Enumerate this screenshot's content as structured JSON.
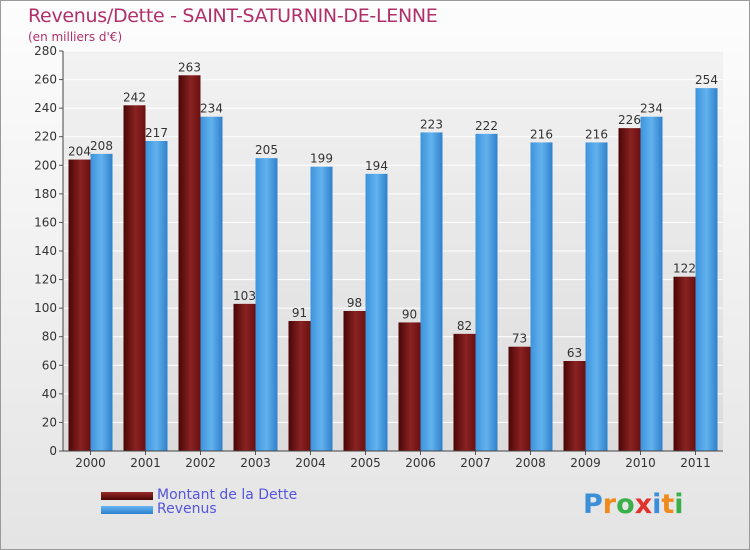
{
  "chart_data": {
    "type": "bar",
    "title": "Revenus/Dette - SAINT-SATURNIN-DE-LENNE",
    "subtitle": "(en milliers d'€)",
    "categories": [
      "2000",
      "2001",
      "2002",
      "2003",
      "2004",
      "2005",
      "2006",
      "2007",
      "2008",
      "2009",
      "2010",
      "2011"
    ],
    "series": [
      {
        "name": "Montant de la Dette",
        "color": "#7a1616",
        "values": [
          204,
          242,
          263,
          103,
          91,
          98,
          90,
          82,
          73,
          63,
          226,
          122
        ]
      },
      {
        "name": "Revenus",
        "color": "#4da3e6",
        "values": [
          208,
          217,
          234,
          205,
          199,
          194,
          223,
          222,
          216,
          216,
          234,
          254
        ]
      }
    ],
    "ylim": [
      0,
      280
    ],
    "yticks": [
      0,
      20,
      40,
      60,
      80,
      100,
      120,
      140,
      160,
      180,
      200,
      220,
      240,
      260,
      280
    ],
    "grid": true,
    "legend": "bottom-left"
  },
  "brand": {
    "letters": [
      "P",
      "r",
      "o",
      "x",
      "i",
      "t",
      "i"
    ],
    "colors": [
      "#3b8ed8",
      "#f08a1c",
      "#3bb04a",
      "#e2322e",
      "#3b8ed8",
      "#f08a1c",
      "#3bb04a"
    ]
  }
}
